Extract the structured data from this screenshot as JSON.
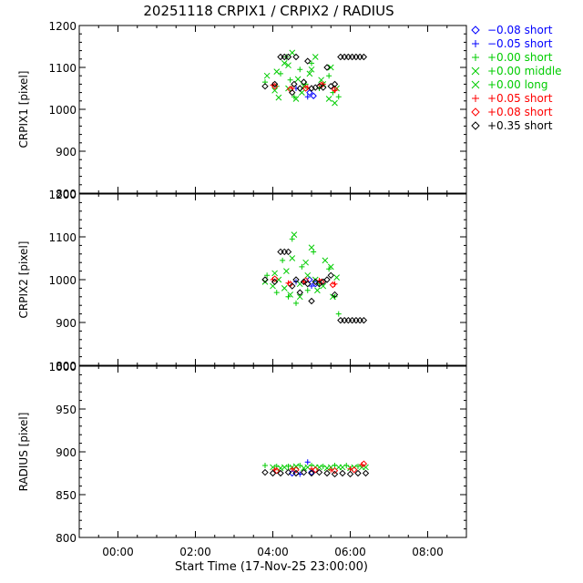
{
  "title": "20251118 CRPIX1 / CRPIX2 / RADIUS",
  "xlabel": "Start Time (17-Nov-25 23:00:00)",
  "legend": [
    {
      "marker": "diamond",
      "color": "#0000ff",
      "label": "−0.08 short"
    },
    {
      "marker": "plus",
      "color": "#0000ff",
      "label": "−0.05 short"
    },
    {
      "marker": "plus",
      "color": "#00cc00",
      "label": "+0.00 short"
    },
    {
      "marker": "cross",
      "color": "#00cc00",
      "label": "+0.00 middle"
    },
    {
      "marker": "cross",
      "color": "#00cc00",
      "label": "+0.00 long"
    },
    {
      "marker": "plus",
      "color": "#ff0000",
      "label": "+0.05 short"
    },
    {
      "marker": "diamond",
      "color": "#ff0000",
      "label": "+0.08 short"
    },
    {
      "marker": "diamond",
      "color": "#000000",
      "label": "+0.35 short"
    }
  ],
  "chart_data": [
    {
      "type": "scatter",
      "ylabel": "CRPIX1 [pixel]",
      "ylim": [
        800,
        1200
      ],
      "yticks": [
        800,
        900,
        1000,
        1100,
        1200
      ],
      "xlim": [
        -1.0,
        9.0
      ],
      "xticks": [
        0,
        2,
        4,
        6,
        8
      ],
      "xticklabels": [
        "00:00",
        "02:00",
        "04:00",
        "06:00",
        "08:00"
      ],
      "series": [
        {
          "name": "−0.08 short",
          "marker": "diamond",
          "color": "#0000ff",
          "x": [
            4.95,
            5.05
          ],
          "y": [
            1040,
            1032
          ]
        },
        {
          "name": "−0.05 short",
          "marker": "plus",
          "color": "#0000ff",
          "x": [
            4.6,
            4.9
          ],
          "y": [
            1050,
            1030
          ]
        },
        {
          "name": "+0.00 short",
          "marker": "plus",
          "color": "#00cc00",
          "x": [
            3.8,
            4.1,
            4.2,
            4.35,
            4.45,
            4.55,
            4.7,
            4.85,
            5.0,
            5.2,
            5.45,
            5.55,
            5.7
          ],
          "y": [
            1065,
            1055,
            1085,
            1125,
            1070,
            1030,
            1095,
            1060,
            1110,
            1050,
            1080,
            1040,
            1030
          ]
        },
        {
          "name": "+0.00 middle",
          "marker": "cross",
          "color": "#00cc00",
          "x": [
            4.05,
            4.15,
            4.3,
            4.4,
            4.5,
            4.65,
            4.75,
            4.95,
            5.1,
            5.3,
            5.5,
            5.6
          ],
          "y": [
            1045,
            1028,
            1110,
            1050,
            1135,
            1072,
            1040,
            1085,
            1125,
            1060,
            1100,
            1015
          ]
        },
        {
          "name": "+0.00 long",
          "marker": "cross",
          "color": "#00cc00",
          "x": [
            3.85,
            4.1,
            4.4,
            4.6,
            4.8,
            5.0,
            5.25,
            5.45,
            5.65
          ],
          "y": [
            1080,
            1090,
            1105,
            1025,
            1055,
            1095,
            1070,
            1025,
            1050
          ]
        },
        {
          "name": "+0.05 short",
          "marker": "plus",
          "color": "#ff0000",
          "x": [
            4.0,
            4.5,
            4.9,
            5.3,
            5.6
          ],
          "y": [
            1058,
            1050,
            1052,
            1060,
            1045
          ]
        },
        {
          "name": "+0.08 short",
          "marker": "diamond",
          "color": "#ff0000",
          "x": [
            4.05,
            4.45,
            4.85,
            5.25,
            5.6
          ],
          "y": [
            1055,
            1048,
            1050,
            1058,
            1048
          ]
        },
        {
          "name": "+0.35 short",
          "marker": "diamond",
          "color": "#000000",
          "x": [
            3.8,
            4.05,
            4.2,
            4.3,
            4.4,
            4.5,
            4.55,
            4.6,
            4.7,
            4.8,
            4.9,
            5.0,
            5.1,
            5.2,
            5.3,
            5.4,
            5.5,
            5.6,
            5.75,
            5.85,
            5.95,
            6.05,
            6.15,
            6.25,
            6.35
          ],
          "y": [
            1055,
            1060,
            1125,
            1125,
            1125,
            1040,
            1060,
            1125,
            1050,
            1065,
            1115,
            1050,
            1052,
            1055,
            1052,
            1100,
            1055,
            1060,
            1125,
            1125,
            1125,
            1125,
            1125,
            1125,
            1125
          ]
        }
      ]
    },
    {
      "type": "scatter",
      "ylabel": "CRPIX2 [pixel]",
      "ylim": [
        800,
        1200
      ],
      "yticks": [
        800,
        900,
        1000,
        1100,
        1200
      ],
      "xlim": [
        -1.0,
        9.0
      ],
      "xticks": [
        0,
        2,
        4,
        6,
        8
      ],
      "xticklabels": [
        "00:00",
        "02:00",
        "04:00",
        "06:00",
        "08:00"
      ],
      "series": [
        {
          "name": "−0.08 short",
          "marker": "diamond",
          "color": "#0000ff",
          "x": [
            4.95,
            5.1
          ],
          "y": [
            1000,
            990
          ]
        },
        {
          "name": "−0.05 short",
          "marker": "plus",
          "color": "#0000ff",
          "x": [
            4.6,
            5.0
          ],
          "y": [
            995,
            985
          ]
        },
        {
          "name": "+0.00 short",
          "marker": "plus",
          "color": "#00cc00",
          "x": [
            3.85,
            4.1,
            4.25,
            4.4,
            4.5,
            4.6,
            4.75,
            4.9,
            5.05,
            5.2,
            5.45,
            5.6,
            5.7
          ],
          "y": [
            1010,
            970,
            1045,
            960,
            1095,
            945,
            1030,
            975,
            1065,
            990,
            1025,
            960,
            920
          ]
        },
        {
          "name": "+0.00 middle",
          "marker": "cross",
          "color": "#00cc00",
          "x": [
            4.0,
            4.15,
            4.35,
            4.45,
            4.55,
            4.7,
            4.85,
            5.0,
            5.15,
            5.35,
            5.55,
            5.65
          ],
          "y": [
            985,
            1000,
            1020,
            965,
            1105,
            990,
            1040,
            1075,
            975,
            1045,
            960,
            1005
          ]
        },
        {
          "name": "+0.00 long",
          "marker": "cross",
          "color": "#00cc00",
          "x": [
            3.8,
            4.05,
            4.3,
            4.5,
            4.7,
            4.9,
            5.1,
            5.3,
            5.5
          ],
          "y": [
            995,
            1015,
            980,
            1050,
            960,
            1010,
            1000,
            985,
            1030
          ]
        },
        {
          "name": "+0.05 short",
          "marker": "plus",
          "color": "#ff0000",
          "x": [
            4.0,
            4.4,
            4.8,
            5.2,
            5.6
          ],
          "y": [
            1000,
            992,
            995,
            998,
            990
          ]
        },
        {
          "name": "+0.08 short",
          "marker": "diamond",
          "color": "#ff0000",
          "x": [
            4.05,
            4.45,
            4.85,
            5.25,
            5.55
          ],
          "y": [
            1002,
            990,
            998,
            995,
            988
          ]
        },
        {
          "name": "+0.35 short",
          "marker": "diamond",
          "color": "#000000",
          "x": [
            3.8,
            4.05,
            4.2,
            4.3,
            4.4,
            4.5,
            4.6,
            4.7,
            4.8,
            4.9,
            5.0,
            5.1,
            5.2,
            5.3,
            5.4,
            5.5,
            5.6,
            5.75,
            5.85,
            5.95,
            6.05,
            6.15,
            6.25,
            6.35
          ],
          "y": [
            1000,
            995,
            1065,
            1065,
            1065,
            985,
            1000,
            970,
            995,
            990,
            950,
            995,
            990,
            995,
            1000,
            1010,
            965,
            905,
            905,
            905,
            905,
            905,
            905,
            905
          ]
        }
      ]
    },
    {
      "type": "scatter",
      "ylabel": "RADIUS [pixel]",
      "ylim": [
        800,
        1000
      ],
      "yticks": [
        800,
        850,
        900,
        950,
        1000
      ],
      "xlim": [
        -1.0,
        9.0
      ],
      "xticks": [
        0,
        2,
        4,
        6,
        8
      ],
      "xticklabels": [
        "00:00",
        "02:00",
        "04:00",
        "06:00",
        "08:00"
      ],
      "series": [
        {
          "name": "−0.08 short",
          "marker": "diamond",
          "color": "#0000ff",
          "x": [
            4.5,
            5.0
          ],
          "y": [
            875,
            876
          ]
        },
        {
          "name": "−0.05 short",
          "marker": "plus",
          "color": "#0000ff",
          "x": [
            4.7,
            4.9
          ],
          "y": [
            874,
            888
          ]
        },
        {
          "name": "+0.00 short",
          "marker": "plus",
          "color": "#00cc00",
          "x": [
            3.8,
            4.1,
            4.4,
            4.7,
            5.0,
            5.3,
            5.6,
            5.9,
            6.2
          ],
          "y": [
            884,
            883,
            883,
            884,
            884,
            883,
            884,
            884,
            883
          ]
        },
        {
          "name": "+0.00 middle",
          "marker": "cross",
          "color": "#00cc00",
          "x": [
            4.0,
            4.3,
            4.6,
            4.9,
            5.2,
            5.5,
            5.8,
            6.1,
            6.4
          ],
          "y": [
            882,
            882,
            883,
            882,
            882,
            882,
            882,
            882,
            882
          ]
        },
        {
          "name": "+0.00 long",
          "marker": "cross",
          "color": "#00cc00",
          "x": [
            4.2,
            4.5,
            4.8,
            5.1,
            5.4,
            5.7,
            6.0,
            6.3
          ],
          "y": [
            881,
            882,
            881,
            882,
            881,
            882,
            881,
            882
          ]
        },
        {
          "name": "+0.05 short",
          "marker": "plus",
          "color": "#ff0000",
          "x": [
            4.05,
            4.5,
            5.0,
            5.5,
            6.0,
            6.3
          ],
          "y": [
            879,
            880,
            880,
            879,
            880,
            885
          ]
        },
        {
          "name": "+0.08 short",
          "marker": "diamond",
          "color": "#ff0000",
          "x": [
            4.1,
            4.6,
            5.1,
            5.6,
            6.1,
            6.35
          ],
          "y": [
            878,
            879,
            879,
            878,
            879,
            886
          ]
        },
        {
          "name": "+0.35 short",
          "marker": "diamond",
          "color": "#000000",
          "x": [
            3.8,
            4.0,
            4.2,
            4.4,
            4.6,
            4.8,
            5.0,
            5.2,
            5.4,
            5.6,
            5.8,
            6.0,
            6.2,
            6.4
          ],
          "y": [
            876,
            875,
            875,
            876,
            875,
            876,
            875,
            876,
            875,
            874,
            875,
            874,
            875,
            875
          ]
        }
      ]
    }
  ]
}
